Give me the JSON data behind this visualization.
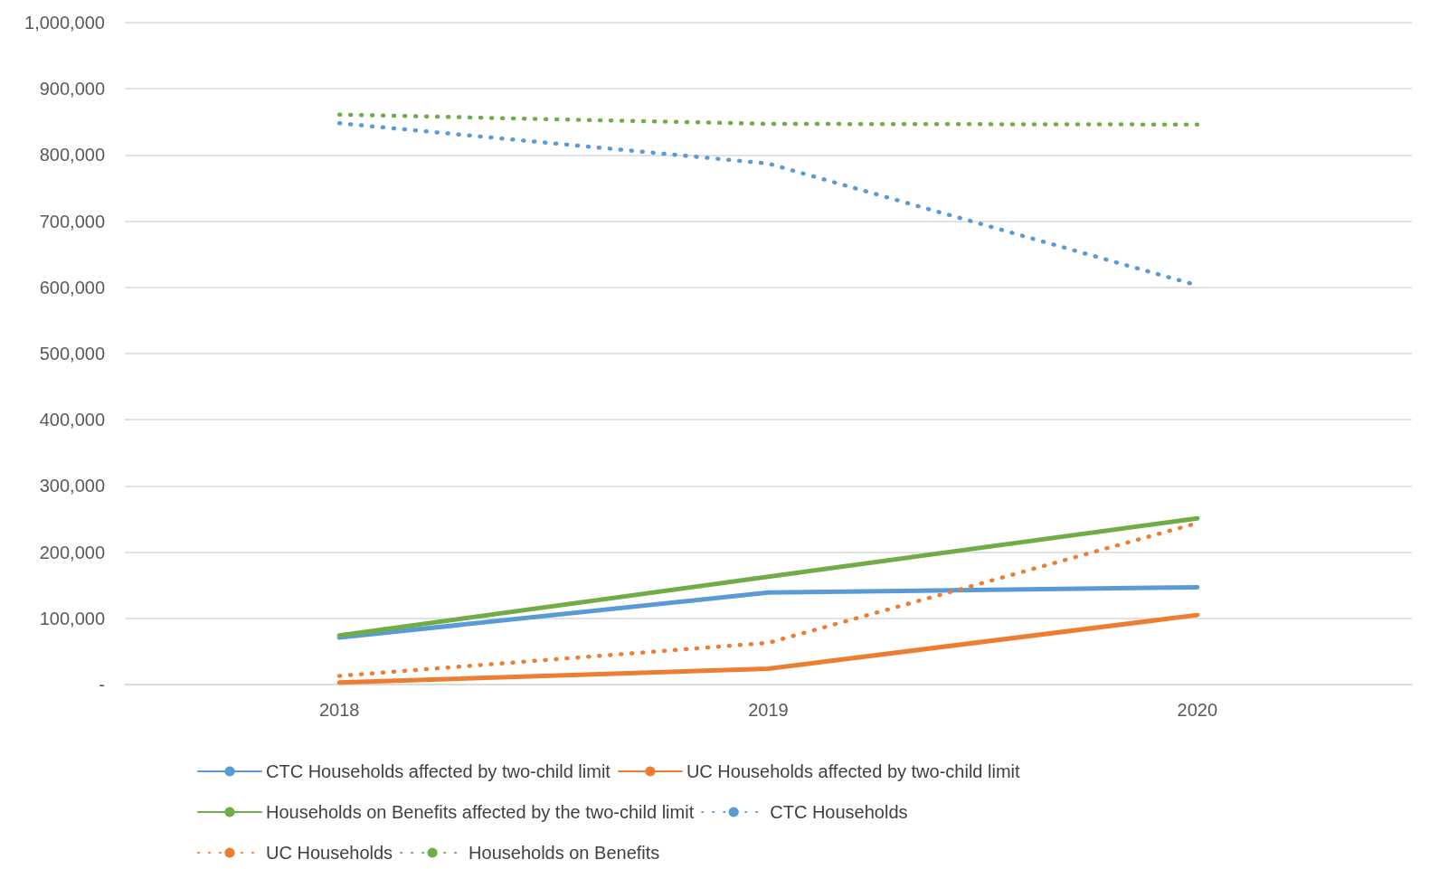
{
  "chart_data": {
    "type": "line",
    "categories": [
      "2018",
      "2019",
      "2020"
    ],
    "series": [
      {
        "name": "CTC Households affected by two-child limit",
        "color": "#5b9bd5",
        "line_style": "solid",
        "values": [
          71000,
          139000,
          147000
        ]
      },
      {
        "name": "UC Households affected by two-child limit",
        "color": "#ed7d31",
        "line_style": "solid",
        "values": [
          3000,
          24000,
          105000
        ]
      },
      {
        "name": "Households on Benefits affected by the two-child limit",
        "color": "#70ad47",
        "line_style": "solid",
        "values": [
          74000,
          163000,
          251000
        ]
      },
      {
        "name": "CTC Households",
        "color": "#5b9bd5",
        "line_style": "dotted",
        "values": [
          848000,
          787000,
          603000
        ]
      },
      {
        "name": "UC Households",
        "color": "#ed7d31",
        "line_style": "dotted",
        "values": [
          13000,
          63000,
          244000
        ]
      },
      {
        "name": "Households on Benefits",
        "color": "#70ad47",
        "line_style": "dotted",
        "values": [
          861000,
          847000,
          846000
        ]
      }
    ],
    "ylim": [
      0,
      1000000
    ],
    "yticks": [
      {
        "value": 0,
        "label": "-"
      },
      {
        "value": 100000,
        "label": "100,000"
      },
      {
        "value": 200000,
        "label": "200,000"
      },
      {
        "value": 300000,
        "label": "300,000"
      },
      {
        "value": 400000,
        "label": "400,000"
      },
      {
        "value": 500000,
        "label": "500,000"
      },
      {
        "value": 600000,
        "label": "600,000"
      },
      {
        "value": 700000,
        "label": "700,000"
      },
      {
        "value": 800000,
        "label": "800,000"
      },
      {
        "value": 900000,
        "label": "900,000"
      },
      {
        "value": 1000000,
        "label": "1,000,000"
      }
    ],
    "grid": "y",
    "legend": "bottom",
    "marker": "none"
  }
}
